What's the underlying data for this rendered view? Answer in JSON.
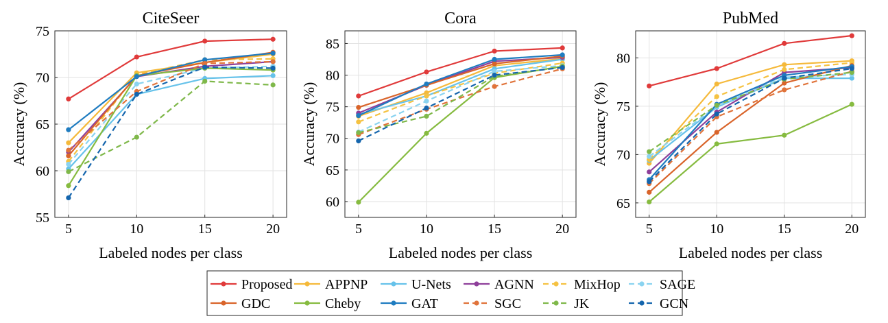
{
  "chart_data": [
    {
      "type": "line",
      "title": "CiteSeer",
      "xlabel": "Labeled nodes per class",
      "ylabel": "Accuracy (%)",
      "x": [
        5,
        10,
        15,
        20
      ],
      "xticks": [
        "5",
        "10",
        "15",
        "20"
      ],
      "yticks": [
        "55",
        "60",
        "65",
        "70",
        "75"
      ],
      "xlim": [
        4,
        21
      ],
      "ylim": [
        55,
        75
      ],
      "grid": true,
      "series": [
        {
          "name": "Proposed",
          "values": [
            67.7,
            72.2,
            73.9,
            74.1
          ]
        },
        {
          "name": "APPNP",
          "values": [
            63.0,
            70.5,
            71.6,
            72.5
          ]
        },
        {
          "name": "U-Nets",
          "values": [
            60.2,
            68.2,
            69.9,
            70.2
          ]
        },
        {
          "name": "AGNN",
          "values": [
            62.0,
            70.1,
            71.2,
            71.7
          ]
        },
        {
          "name": "MixHop",
          "values": [
            61.0,
            70.3,
            71.9,
            72.0
          ]
        },
        {
          "name": "SAGE",
          "values": [
            60.7,
            69.3,
            71.0,
            71.2
          ]
        },
        {
          "name": "GDC",
          "values": [
            61.6,
            70.2,
            71.6,
            72.7
          ]
        },
        {
          "name": "Cheby",
          "values": [
            58.4,
            70.2,
            71.0,
            70.8
          ]
        },
        {
          "name": "GAT",
          "values": [
            64.4,
            70.1,
            71.9,
            72.6
          ]
        },
        {
          "name": "SGC",
          "values": [
            62.2,
            68.5,
            71.5,
            71.7
          ]
        },
        {
          "name": "JK",
          "values": [
            59.9,
            63.6,
            69.6,
            69.2
          ]
        },
        {
          "name": "GCN",
          "values": [
            57.1,
            68.2,
            71.1,
            71.0
          ]
        }
      ]
    },
    {
      "type": "line",
      "title": "Cora",
      "xlabel": "Labeled nodes per class",
      "ylabel": "Accuracy (%)",
      "x": [
        5,
        10,
        15,
        20
      ],
      "xticks": [
        "5",
        "10",
        "15",
        "20"
      ],
      "yticks": [
        "60",
        "65",
        "70",
        "75",
        "80",
        "85"
      ],
      "xlim": [
        4,
        21
      ],
      "ylim": [
        57.5,
        87
      ],
      "grid": true,
      "series": [
        {
          "name": "Proposed",
          "values": [
            76.7,
            80.5,
            83.8,
            84.3
          ]
        },
        {
          "name": "APPNP",
          "values": [
            73.5,
            77.2,
            81.5,
            82.6
          ]
        },
        {
          "name": "U-Nets",
          "values": [
            73.8,
            76.7,
            81.0,
            82.5
          ]
        },
        {
          "name": "AGNN",
          "values": [
            74.0,
            78.4,
            82.2,
            82.8
          ]
        },
        {
          "name": "MixHop",
          "values": [
            72.6,
            76.7,
            80.3,
            81.9
          ]
        },
        {
          "name": "SAGE",
          "values": [
            71.0,
            75.9,
            80.6,
            81.5
          ]
        },
        {
          "name": "GDC",
          "values": [
            74.9,
            78.4,
            81.8,
            83.0
          ]
        },
        {
          "name": "Cheby",
          "values": [
            59.9,
            70.8,
            79.6,
            81.4
          ]
        },
        {
          "name": "GAT",
          "values": [
            73.6,
            78.6,
            82.5,
            83.2
          ]
        },
        {
          "name": "SGC",
          "values": [
            70.6,
            74.6,
            78.2,
            81.0
          ]
        },
        {
          "name": "JK",
          "values": [
            70.9,
            73.5,
            79.8,
            81.3
          ]
        },
        {
          "name": "GCN",
          "values": [
            69.6,
            74.8,
            80.0,
            81.2
          ]
        }
      ]
    },
    {
      "type": "line",
      "title": "PubMed",
      "xlabel": "Labeled nodes per class",
      "ylabel": "Accuracy (%)",
      "x": [
        5,
        10,
        15,
        20
      ],
      "xticks": [
        "5",
        "10",
        "15",
        "20"
      ],
      "yticks": [
        "65",
        "70",
        "75",
        "80"
      ],
      "xlim": [
        4,
        21
      ],
      "ylim": [
        63.5,
        82.8
      ],
      "grid": true,
      "series": [
        {
          "name": "Proposed",
          "values": [
            77.1,
            78.9,
            81.5,
            82.3
          ]
        },
        {
          "name": "APPNP",
          "values": [
            69.1,
            77.3,
            79.3,
            79.7
          ]
        },
        {
          "name": "U-Nets",
          "values": [
            69.4,
            74.9,
            77.9,
            77.9
          ]
        },
        {
          "name": "AGNN",
          "values": [
            68.2,
            74.4,
            78.5,
            79.0
          ]
        },
        {
          "name": "MixHop",
          "values": [
            69.5,
            76.0,
            78.8,
            79.5
          ]
        },
        {
          "name": "SAGE",
          "values": [
            69.8,
            75.0,
            78.0,
            78.3
          ]
        },
        {
          "name": "GDC",
          "values": [
            66.1,
            72.3,
            77.4,
            79.2
          ]
        },
        {
          "name": "Cheby",
          "values": [
            65.1,
            71.1,
            72.0,
            75.2
          ]
        },
        {
          "name": "GAT",
          "values": [
            67.4,
            75.2,
            78.2,
            79.1
          ]
        },
        {
          "name": "SGC",
          "values": [
            67.0,
            73.9,
            76.7,
            78.6
          ]
        },
        {
          "name": "JK",
          "values": [
            70.3,
            75.1,
            77.8,
            78.5
          ]
        },
        {
          "name": "GCN",
          "values": [
            67.2,
            74.2,
            77.9,
            78.9
          ]
        }
      ]
    }
  ],
  "legend": {
    "placement": "bottom-center",
    "rows": [
      [
        "Proposed",
        "APPNP",
        "U-Nets",
        "AGNN",
        "MixHop",
        "SAGE"
      ],
      [
        "GDC",
        "Cheby",
        "GAT",
        "SGC",
        "JK",
        "GCN"
      ]
    ]
  },
  "series_styles": {
    "Proposed": {
      "color": "#e03a3a",
      "dash": "solid"
    },
    "APPNP": {
      "color": "#f5b93a",
      "dash": "solid"
    },
    "U-Nets": {
      "color": "#66c2ea",
      "dash": "solid"
    },
    "AGNN": {
      "color": "#8e3f9a",
      "dash": "solid"
    },
    "MixHop": {
      "color": "#f5c242",
      "dash": "dashed"
    },
    "SAGE": {
      "color": "#8ad3f0",
      "dash": "dashed"
    },
    "GDC": {
      "color": "#d9642a",
      "dash": "solid"
    },
    "Cheby": {
      "color": "#86bb40",
      "dash": "solid"
    },
    "GAT": {
      "color": "#1f7cc0",
      "dash": "solid"
    },
    "SGC": {
      "color": "#e0733a",
      "dash": "dashed"
    },
    "JK": {
      "color": "#7fb84a",
      "dash": "dashed"
    },
    "GCN": {
      "color": "#1465ad",
      "dash": "dashed"
    }
  }
}
